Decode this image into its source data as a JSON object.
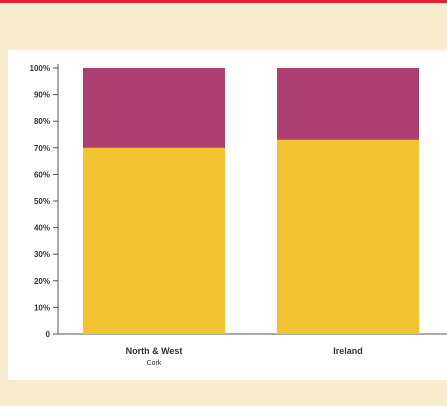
{
  "chart_data": {
    "type": "bar",
    "stacked": true,
    "categories": [
      "North & West\nCork",
      "Ireland"
    ],
    "series": [
      {
        "values": [
          70,
          73
        ],
        "color": "#f2c230"
      },
      {
        "values": [
          30,
          27
        ],
        "color": "#ad3f72"
      }
    ],
    "yticks": [
      "0",
      "10%",
      "20%",
      "30%",
      "40%",
      "50%",
      "60%",
      "70%",
      "80%",
      "90%",
      "100%"
    ],
    "ylim": [
      0,
      100
    ],
    "grid": false,
    "title": "",
    "xlabel": "",
    "ylabel": ""
  },
  "colors": {
    "background": "#f8ecd0",
    "panel": "#ffffff",
    "top_rule": "#e21f2b",
    "axis": "#555555"
  }
}
